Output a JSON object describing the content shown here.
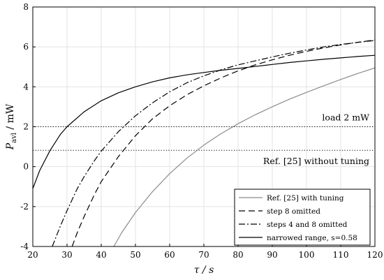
{
  "chart_data": {
    "type": "line",
    "xlabel": "τ / s",
    "ylabel_main": "P",
    "ylabel_sub": "avl",
    "ylabel_unit": " / mW",
    "xlim": [
      20,
      120
    ],
    "ylim": [
      -4,
      8
    ],
    "xticks": [
      "20",
      "30",
      "40",
      "50",
      "60",
      "70",
      "80",
      "90",
      "100",
      "110",
      "120"
    ],
    "yticks": [
      "-4",
      "-2",
      "0",
      "2",
      "4",
      "6",
      "8"
    ],
    "grid": true,
    "legend_position": "bottom-right",
    "hlines": [
      {
        "y": 2.0,
        "label": "load 2 mW"
      },
      {
        "y": 0.82,
        "label": "Ref. [25] without tuning"
      }
    ],
    "series": [
      {
        "name": "Ref. [25] with tuning",
        "color": "#8c8c8c",
        "dash": "solid",
        "x": [
          43.7,
          46,
          50,
          55,
          60,
          65,
          70,
          75,
          80,
          85,
          90,
          95,
          100,
          105,
          110,
          115,
          120
        ],
        "y": [
          -4.0,
          -3.3,
          -2.3,
          -1.25,
          -0.35,
          0.42,
          1.08,
          1.65,
          2.15,
          2.6,
          3.0,
          3.38,
          3.72,
          4.05,
          4.37,
          4.67,
          4.95
        ]
      },
      {
        "name": "step 8 omitted",
        "color": "#000000",
        "dash": "dashed",
        "x": [
          31.5,
          33,
          35,
          38,
          40,
          45,
          50,
          55,
          60,
          65,
          70,
          75,
          80,
          85,
          90,
          95,
          100,
          105,
          110,
          115,
          120
        ],
        "y": [
          -4.0,
          -3.3,
          -2.5,
          -1.4,
          -0.75,
          0.5,
          1.55,
          2.4,
          3.05,
          3.6,
          4.05,
          4.45,
          4.8,
          5.1,
          5.35,
          5.58,
          5.78,
          5.95,
          6.1,
          6.23,
          6.35
        ]
      },
      {
        "name": "steps 4 and 8 omitted",
        "color": "#000000",
        "dash": "dashdot",
        "x": [
          25.7,
          28,
          30,
          33,
          35,
          38,
          40,
          45,
          50,
          55,
          60,
          65,
          70,
          75,
          80,
          85,
          90,
          95,
          100,
          105,
          110,
          115,
          120
        ],
        "y": [
          -4.0,
          -3.0,
          -2.2,
          -1.1,
          -0.5,
          0.3,
          0.78,
          1.75,
          2.55,
          3.2,
          3.75,
          4.2,
          4.55,
          4.85,
          5.1,
          5.3,
          5.5,
          5.68,
          5.85,
          6.0,
          6.12,
          6.23,
          6.32
        ]
      },
      {
        "name": "narrowed range, s=0.58",
        "color": "#000000",
        "dash": "solid",
        "x": [
          20,
          22,
          25,
          28,
          30,
          35,
          40,
          45,
          50,
          55,
          60,
          65,
          70,
          75,
          80,
          85,
          90,
          95,
          100,
          105,
          110,
          115,
          120
        ],
        "y": [
          -1.1,
          -0.2,
          0.8,
          1.6,
          2.0,
          2.75,
          3.3,
          3.7,
          4.0,
          4.25,
          4.45,
          4.6,
          4.72,
          4.83,
          4.92,
          5.02,
          5.12,
          5.22,
          5.3,
          5.38,
          5.45,
          5.52,
          5.58
        ]
      }
    ]
  }
}
